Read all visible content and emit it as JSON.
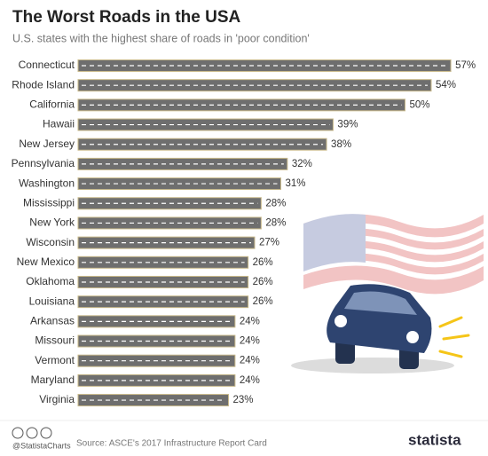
{
  "chart_data": {
    "type": "bar",
    "orientation": "horizontal",
    "title": "The Worst Roads in the USA",
    "subtitle": "U.S. states with the highest share of roads in 'poor condition'",
    "categories": [
      "Connecticut",
      "Rhode Island",
      "California",
      "Hawaii",
      "New Jersey",
      "Pennsylvania",
      "Washington",
      "Mississippi",
      "New York",
      "Wisconsin",
      "New Mexico",
      "Oklahoma",
      "Louisiana",
      "Arkansas",
      "Missouri",
      "Vermont",
      "Maryland",
      "Virginia"
    ],
    "values": [
      57,
      54,
      50,
      39,
      38,
      32,
      31,
      28,
      28,
      27,
      26,
      26,
      26,
      24,
      24,
      24,
      24,
      23
    ],
    "value_labels": [
      "57%",
      "54%",
      "50%",
      "39%",
      "38%",
      "32%",
      "31%",
      "28%",
      "28%",
      "27%",
      "26%",
      "26%",
      "26%",
      "24%",
      "24%",
      "24%",
      "24%",
      "23%"
    ],
    "color": "#6e6e6e",
    "source": "Source: ASCE's 2017 Infrastructure Report Card",
    "credit": "@StatistaCharts",
    "brand": "statista"
  }
}
